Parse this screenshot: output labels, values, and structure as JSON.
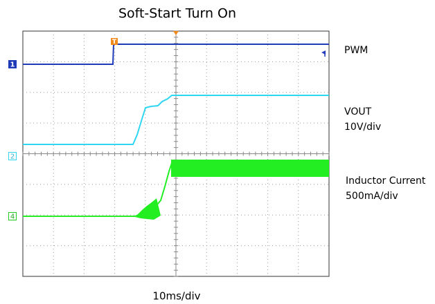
{
  "title": "Soft-Start Turn On",
  "time_scale": "10ms/div",
  "trigger_marker": "T",
  "channels": [
    {
      "marker": "1",
      "label": "PWM"
    },
    {
      "marker": "2",
      "label": "VOUT",
      "scale": "10V/div"
    },
    {
      "marker": "4",
      "label": "Inductor Current",
      "scale": "500mA/div"
    }
  ]
}
